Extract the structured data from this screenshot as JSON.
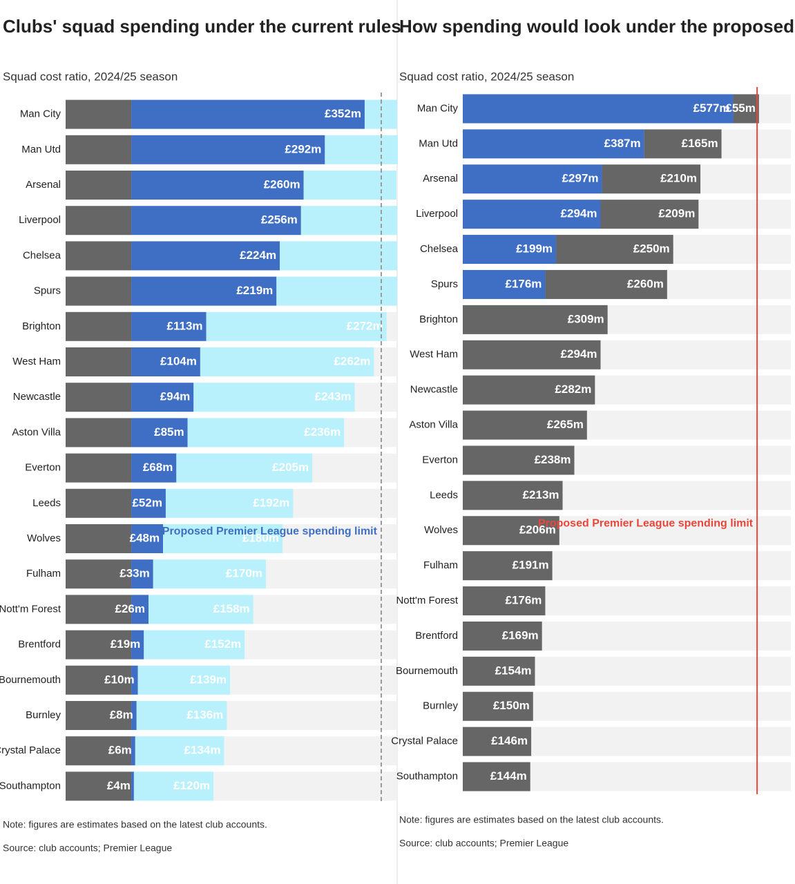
{
  "chart_data": [
    {
      "type": "stacked_hbar",
      "title": "Clubs' squad spending under the current rules",
      "subtitle": "Squad cost ratio, 2024/25 season",
      "categories": [
        "Man City",
        "Man Utd",
        "Arsenal",
        "Liverpool",
        "Chelsea",
        "Spurs",
        "Brighton",
        "West Ham",
        "Newcastle",
        "Aston Villa",
        "Everton",
        "Leeds",
        "Wolves",
        "Fulham",
        "Nott'm Forest",
        "Brentford",
        "Bournemouth",
        "Burnley",
        "Crystal Palace",
        "Southampton"
      ],
      "series": [
        {
          "color": "#666666",
          "values": [
            99,
            99,
            99,
            99,
            99,
            99,
            99,
            99,
            99,
            99,
            99,
            99,
            99,
            99,
            99,
            99,
            99,
            99,
            99,
            99
          ]
        },
        {
          "color": "#3f6fc4",
          "values": [
            352,
            292,
            260,
            256,
            224,
            219,
            113,
            104,
            94,
            85,
            68,
            52,
            48,
            33,
            26,
            19,
            10,
            8,
            6,
            4
          ],
          "value_labels": [
            "£352m",
            "£292m",
            "£260m",
            "£256m",
            "£224m",
            "£219m",
            "£113m",
            "£104m",
            "£94m",
            "£85m",
            "£68m",
            "£52m",
            "£48m",
            "£33m",
            "£26m",
            "£19m",
            "£10m",
            "£8m",
            "£6m",
            "£4m"
          ]
        },
        {
          "color": "#b8f1fb",
          "values": [
            49,
            110,
            140,
            145,
            177,
            182,
            272,
            262,
            243,
            236,
            205,
            192,
            180,
            170,
            158,
            152,
            139,
            136,
            134,
            120
          ],
          "value_labels": [
            null,
            null,
            null,
            null,
            null,
            null,
            "£272m",
            "£262m",
            "£243m",
            "£236m",
            "£205m",
            "£192m",
            "£180m",
            "£170m",
            "£158m",
            "£152m",
            "£139m",
            "£136m",
            "£134m",
            "£120m"
          ]
        }
      ],
      "xlim": [
        0,
        500
      ],
      "limit_line": {
        "value": 476,
        "color": "#999999",
        "dashed": true,
        "label": "Proposed Premier League spending limit",
        "label_color": "#3f6fc4"
      },
      "notes": [
        "Note: figures are estimates based on the latest club accounts.",
        "Source: club accounts; Premier League"
      ]
    },
    {
      "type": "stacked_hbar",
      "title": "How spending would look under the proposed rule",
      "subtitle": "Squad cost ratio, 2024/25 season",
      "categories": [
        "Man City",
        "Man Utd",
        "Arsenal",
        "Liverpool",
        "Chelsea",
        "Spurs",
        "Brighton",
        "West Ham",
        "Newcastle",
        "Aston Villa",
        "Everton",
        "Leeds",
        "Wolves",
        "Fulham",
        "Nott'm Forest",
        "Brentford",
        "Bournemouth",
        "Burnley",
        "Crystal Palace",
        "Southampton"
      ],
      "series": [
        {
          "color": "#3f6fc4",
          "values": [
            577,
            387,
            297,
            294,
            199,
            176,
            null,
            null,
            null,
            null,
            null,
            null,
            null,
            null,
            null,
            null,
            null,
            null,
            null,
            null
          ],
          "value_labels": [
            "£577m",
            "£387m",
            "£297m",
            "£294m",
            "£199m",
            "£176m",
            null,
            null,
            null,
            null,
            null,
            null,
            null,
            null,
            null,
            null,
            null,
            null,
            null,
            null
          ]
        },
        {
          "color": "#666666",
          "values": [
            55,
            165,
            210,
            209,
            250,
            260,
            309,
            294,
            282,
            265,
            238,
            213,
            206,
            191,
            176,
            169,
            154,
            150,
            146,
            144
          ],
          "value_labels": [
            "£55m",
            "£165m",
            "£210m",
            "£209m",
            "£250m",
            "£260m",
            "£309m",
            "£294m",
            "£282m",
            "£265m",
            "£238m",
            "£213m",
            "£206m",
            "£191m",
            "£176m",
            "£169m",
            "£154m",
            "£150m",
            "£146m",
            "£144m"
          ]
        }
      ],
      "xlim": [
        0,
        700
      ],
      "limit_line": {
        "value": 628,
        "color": "#e8473b",
        "dashed": false,
        "label": "Proposed Premier League spending limit",
        "label_color": "#e8473b"
      },
      "notes": [
        "Note: figures are estimates based on the latest club accounts.",
        "Source: club accounts; Premier League"
      ]
    }
  ]
}
